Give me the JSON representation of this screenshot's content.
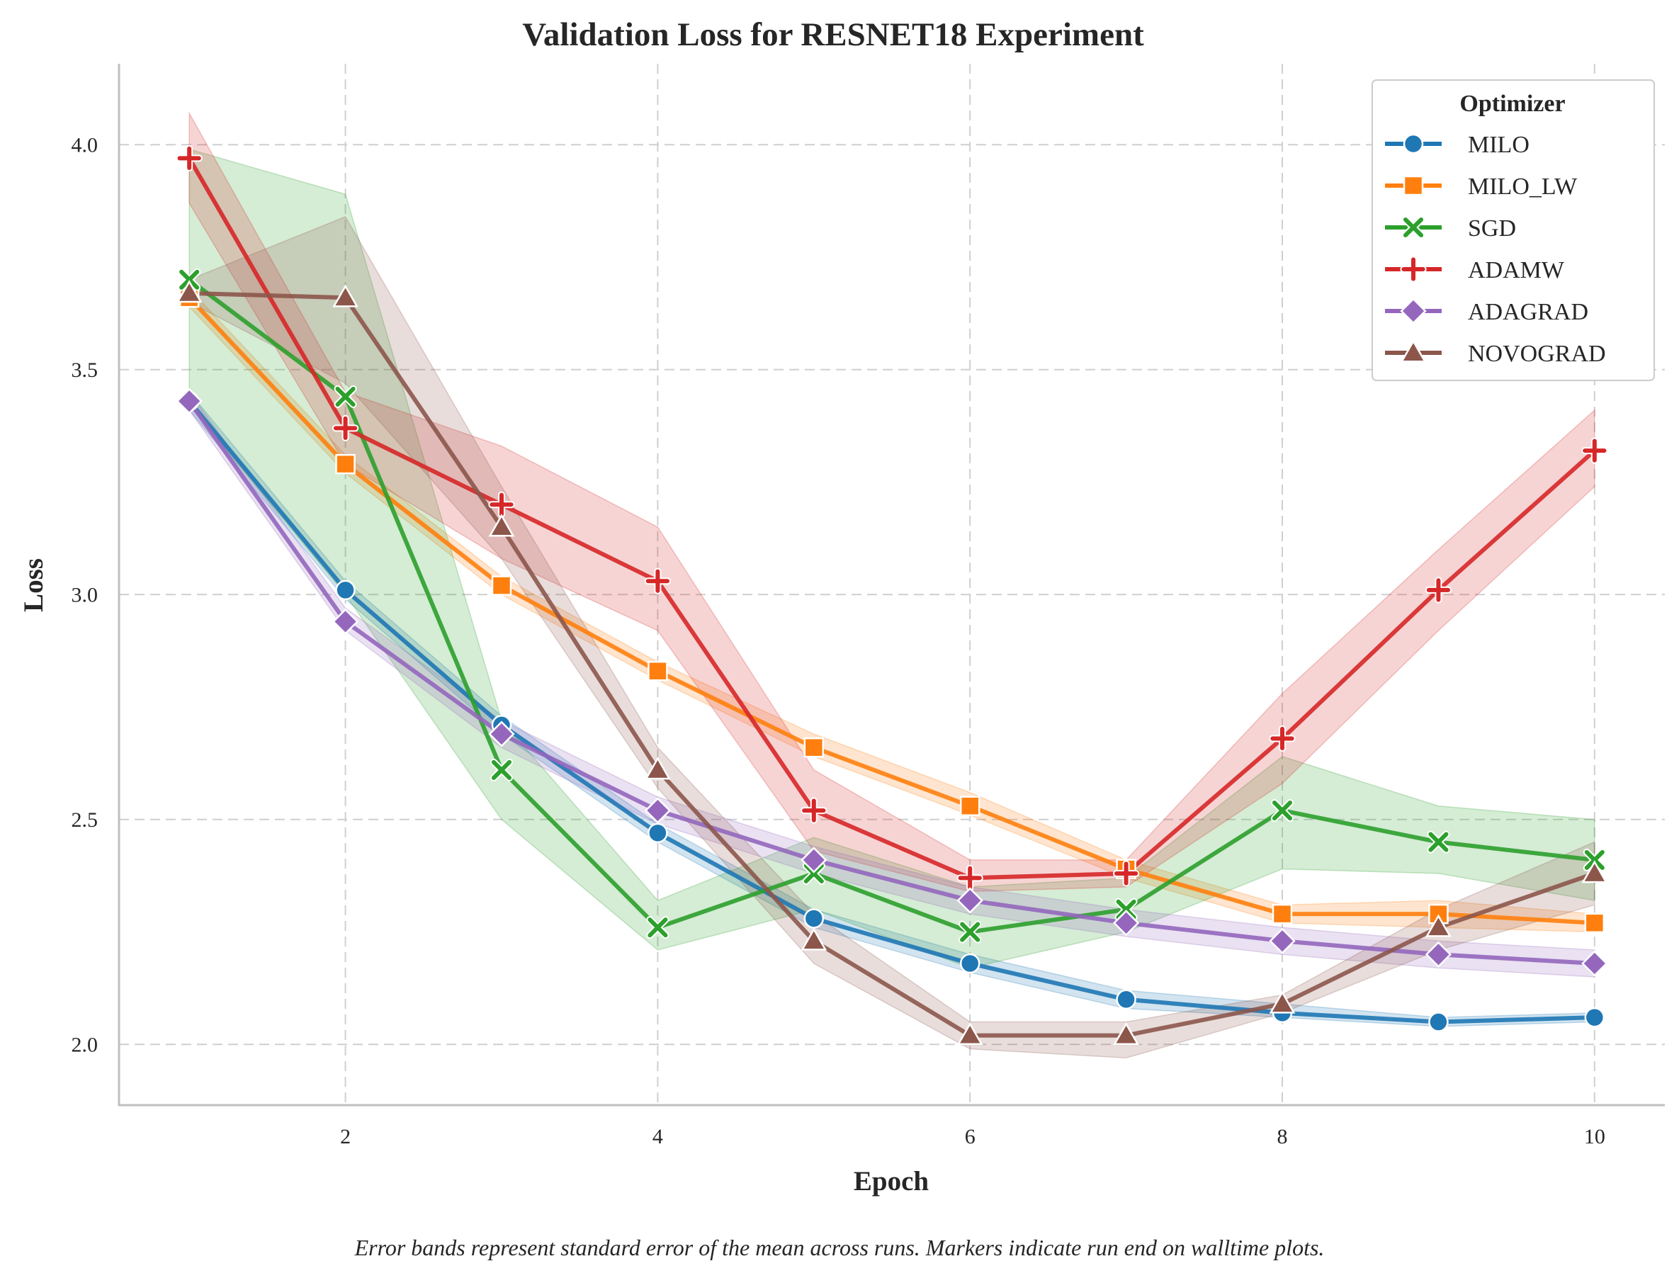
{
  "chart_data": {
    "type": "line",
    "title": "Validation Loss for RESNET18 Experiment",
    "xlabel": "Epoch",
    "ylabel": "Loss",
    "xlim": [
      0.55,
      10.45
    ],
    "ylim": [
      1.865,
      4.18
    ],
    "xticks": [
      2,
      4,
      6,
      8,
      10
    ],
    "xtick_labels": [
      "2",
      "4",
      "6",
      "8",
      "10"
    ],
    "yticks": [
      2.0,
      2.5,
      3.0,
      3.5,
      4.0
    ],
    "ytick_labels": [
      "2.0",
      "2.5",
      "3.0",
      "3.5",
      "4.0"
    ],
    "grid": true,
    "legend_title": "Optimizer",
    "legend_position": "top-right",
    "caption": "Error bands represent standard error of the mean across runs. Markers indicate run end on walltime plots.",
    "x": [
      1,
      2,
      3,
      4,
      5,
      6,
      7,
      8,
      9,
      10
    ],
    "series": [
      {
        "name": "MILO",
        "color": "#1f77b4",
        "marker": "circle",
        "values": [
          3.43,
          3.01,
          2.71,
          2.47,
          2.28,
          2.18,
          2.1,
          2.07,
          2.05,
          2.06
        ],
        "lower": [
          3.41,
          2.99,
          2.69,
          2.45,
          2.26,
          2.16,
          2.08,
          2.06,
          2.04,
          2.05
        ],
        "upper": [
          3.45,
          3.03,
          2.73,
          2.49,
          2.3,
          2.2,
          2.12,
          2.09,
          2.06,
          2.07
        ]
      },
      {
        "name": "MILO_LW",
        "color": "#ff7f0e",
        "marker": "square",
        "values": [
          3.66,
          3.29,
          3.02,
          2.83,
          2.66,
          2.53,
          2.39,
          2.29,
          2.29,
          2.27
        ],
        "lower": [
          3.64,
          3.27,
          3.0,
          2.81,
          2.64,
          2.51,
          2.37,
          2.27,
          2.26,
          2.25
        ],
        "upper": [
          3.68,
          3.31,
          3.04,
          2.85,
          2.69,
          2.56,
          2.41,
          2.31,
          2.32,
          2.29
        ]
      },
      {
        "name": "SGD",
        "color": "#2ca02c",
        "marker": "x",
        "values": [
          3.7,
          3.44,
          2.61,
          2.26,
          2.38,
          2.25,
          2.3,
          2.52,
          2.45,
          2.41
        ],
        "lower": [
          3.42,
          3.0,
          2.5,
          2.21,
          2.3,
          2.17,
          2.25,
          2.39,
          2.38,
          2.32
        ],
        "upper": [
          3.99,
          3.89,
          2.72,
          2.32,
          2.46,
          2.35,
          2.37,
          2.64,
          2.53,
          2.5
        ]
      },
      {
        "name": "ADAMW",
        "color": "#d62728",
        "marker": "plus",
        "values": [
          3.97,
          3.37,
          3.2,
          3.03,
          2.52,
          2.37,
          2.38,
          2.68,
          3.01,
          3.32
        ],
        "lower": [
          3.87,
          3.29,
          3.08,
          2.92,
          2.43,
          2.34,
          2.35,
          2.58,
          2.92,
          3.24
        ],
        "upper": [
          4.07,
          3.45,
          3.33,
          3.15,
          2.61,
          2.41,
          2.41,
          2.78,
          3.1,
          3.41
        ]
      },
      {
        "name": "ADAGRAD",
        "color": "#9467bd",
        "marker": "diamond",
        "values": [
          3.43,
          2.94,
          2.69,
          2.52,
          2.41,
          2.32,
          2.27,
          2.23,
          2.2,
          2.18
        ],
        "lower": [
          3.41,
          2.92,
          2.66,
          2.49,
          2.38,
          2.29,
          2.24,
          2.2,
          2.17,
          2.15
        ],
        "upper": [
          3.45,
          2.97,
          2.72,
          2.55,
          2.44,
          2.35,
          2.3,
          2.26,
          2.23,
          2.21
        ]
      },
      {
        "name": "NOVOGRAD",
        "color": "#8c564b",
        "marker": "triangle",
        "values": [
          3.67,
          3.66,
          3.15,
          2.61,
          2.23,
          2.02,
          2.02,
          2.09,
          2.26,
          2.38
        ],
        "lower": [
          3.65,
          3.47,
          3.08,
          2.57,
          2.18,
          1.99,
          1.97,
          2.07,
          2.21,
          2.31
        ],
        "upper": [
          3.7,
          3.84,
          3.24,
          2.66,
          2.29,
          2.05,
          2.05,
          2.11,
          2.3,
          2.45
        ]
      }
    ]
  }
}
